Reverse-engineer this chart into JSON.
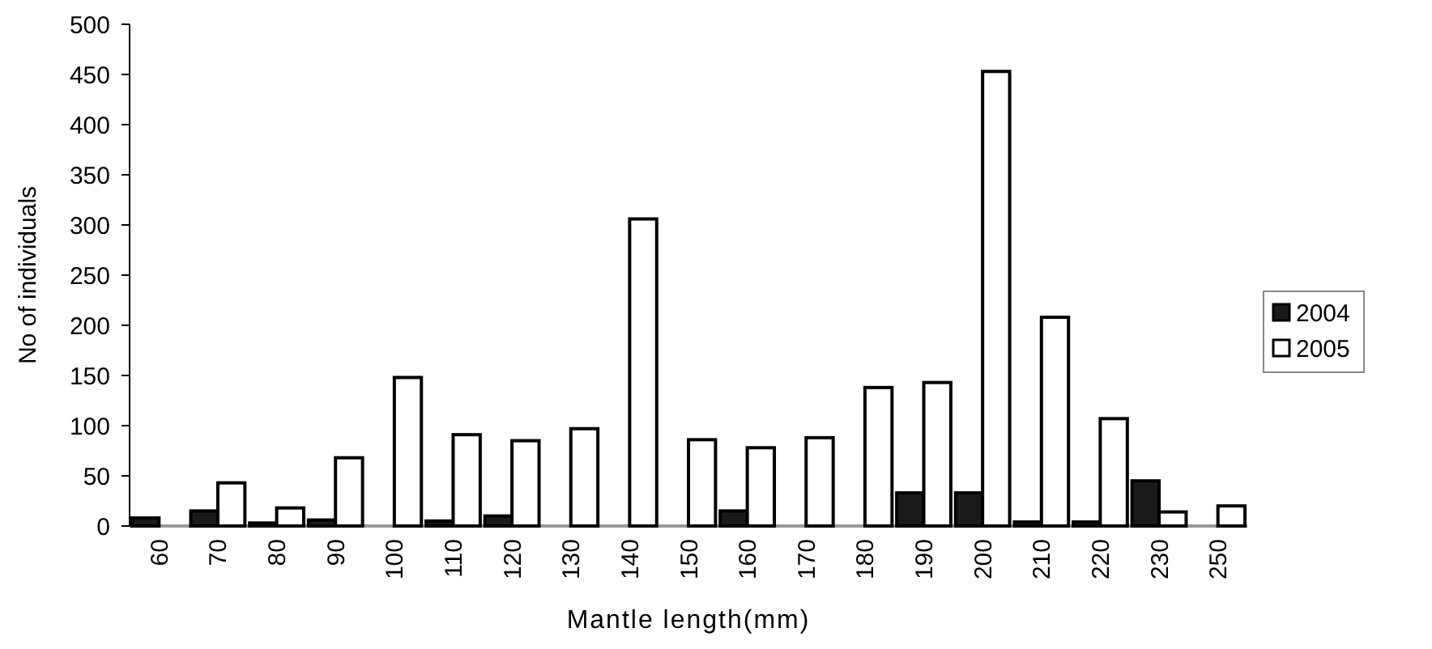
{
  "chart_data": {
    "type": "bar",
    "xlabel": "Mantle length(mm)",
    "ylabel": "No  of individuals",
    "categories": [
      "60",
      "70",
      "80",
      "90",
      "100",
      "110",
      "120",
      "130",
      "140",
      "150",
      "160",
      "170",
      "180",
      "190",
      "200",
      "210",
      "220",
      "230",
      "250"
    ],
    "series": [
      {
        "name": "2004",
        "color": "#1a1a1a",
        "values": [
          8,
          15,
          3,
          6,
          0,
          5,
          10,
          0,
          0,
          0,
          15,
          0,
          0,
          33,
          33,
          4,
          4,
          45,
          0
        ]
      },
      {
        "name": "2005",
        "color": "#ffffff",
        "values": [
          0,
          43,
          18,
          68,
          148,
          91,
          85,
          97,
          306,
          86,
          78,
          88,
          138,
          143,
          453,
          208,
          107,
          14,
          20
        ]
      }
    ],
    "ylim": [
      0,
      500
    ],
    "yticks": [
      0,
      50,
      100,
      150,
      200,
      250,
      300,
      350,
      400,
      450,
      500
    ],
    "grid": false,
    "legend": "right"
  }
}
